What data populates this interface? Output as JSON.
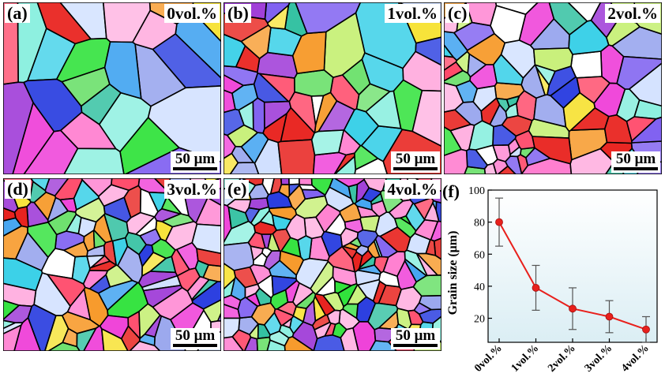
{
  "figure": {
    "panels": [
      {
        "id": "a",
        "label": "(a)",
        "content": "0vol.%",
        "scale": "50 μm",
        "seed": 11,
        "grains": 26
      },
      {
        "id": "b",
        "label": "(b)",
        "content": "1vol.%",
        "scale": "50 μm",
        "seed": 23,
        "grains": 60
      },
      {
        "id": "c",
        "label": "(c)",
        "content": "2vol.%",
        "scale": "50 μm",
        "seed": 37,
        "grains": 90
      },
      {
        "id": "d",
        "label": "(d)",
        "content": "3vol.%",
        "scale": "50 μm",
        "seed": 51,
        "grains": 120
      },
      {
        "id": "e",
        "label": "(e)",
        "content": "4vol.%",
        "scale": "50 μm",
        "seed": 67,
        "grains": 190
      }
    ]
  },
  "chart_data": {
    "type": "line",
    "panel_label": "(f)",
    "categories": [
      "0vol.%",
      "1vol.%",
      "2vol.%",
      "3vol.%",
      "4vol.%"
    ],
    "values": [
      80,
      39,
      26,
      21,
      13
    ],
    "errors": [
      15,
      14,
      13,
      10,
      8
    ],
    "ylabel": "Grain size (μm)",
    "xlabel": "",
    "ylim": [
      5,
      100
    ],
    "yticks": [
      20,
      40,
      60,
      80,
      100
    ],
    "colors": {
      "line": "#e8201c",
      "marker": "#e8201c",
      "error": "#555555",
      "background_top": "#ffffff",
      "background_bottom": "#dbeef4"
    },
    "grid": false,
    "legend": "none"
  }
}
